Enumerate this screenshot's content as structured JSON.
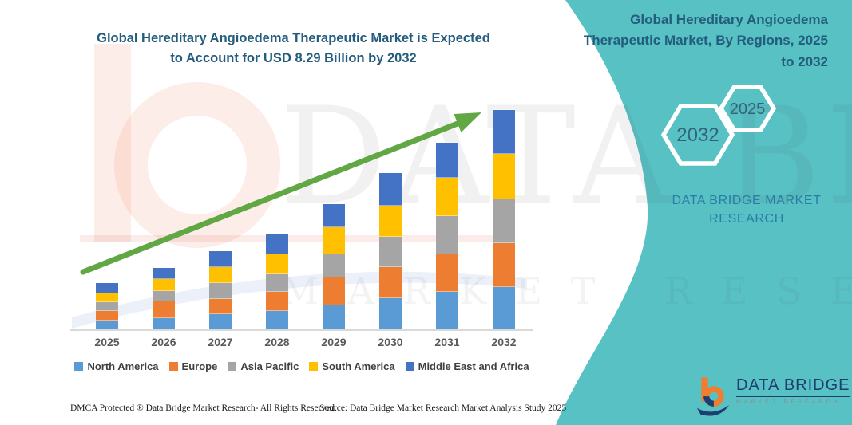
{
  "header": {
    "main_title_line1": "Global Hereditary Angioedema Therapeutic Market is Expected",
    "main_title_line2": "to Account for USD 8.29 Billion by 2032"
  },
  "side_panel": {
    "title": "Global Hereditary Angioedema Therapeutic Market, By Regions, 2025 to 2032",
    "hexagon_back_label": "2025",
    "hexagon_front_label": "2032",
    "brand_line1": "DATA BRIDGE MARKET",
    "brand_line2": "RESEARCH",
    "panel_color": "#57C1C4",
    "title_color": "#235C7C",
    "brand_color": "#2B7CA5"
  },
  "chart_data": {
    "type": "bar",
    "stacked": true,
    "title": "Global Hereditary Angioedema Therapeutic Market is Expected to Account for USD 8.29 Billion by 2032",
    "unit": "USD Billion",
    "categories": [
      "2025",
      "2026",
      "2027",
      "2028",
      "2029",
      "2030",
      "2031",
      "2032"
    ],
    "series": [
      {
        "name": "North America",
        "color": "#5B9BD5",
        "values": [
          0.33,
          0.42,
          0.57,
          0.69,
          0.9,
          1.17,
          1.41,
          1.59
        ]
      },
      {
        "name": "Europe",
        "color": "#ED7D31",
        "values": [
          0.36,
          0.63,
          0.57,
          0.72,
          1.05,
          1.17,
          1.44,
          1.68
        ]
      },
      {
        "name": "Asia Pacific",
        "color": "#A5A5A5",
        "values": [
          0.33,
          0.39,
          0.6,
          0.66,
          0.9,
          1.17,
          1.44,
          1.65
        ]
      },
      {
        "name": "South America",
        "color": "#FFC000",
        "values": [
          0.33,
          0.45,
          0.6,
          0.78,
          1.02,
          1.17,
          1.44,
          1.71
        ]
      },
      {
        "name": "Middle East and Africa",
        "color": "#4472C4",
        "values": [
          0.42,
          0.45,
          0.63,
          0.75,
          0.87,
          1.23,
          1.35,
          1.66
        ]
      }
    ],
    "totals": [
      1.77,
      2.34,
      2.97,
      3.6,
      4.74,
      5.91,
      7.08,
      8.29
    ],
    "ylim": [
      0,
      8.6
    ],
    "grid": false,
    "legend_position": "bottom",
    "trend_arrow": true,
    "trend_arrow_color": "#61A744",
    "axis_line_color": "#D9D9D9"
  },
  "watermark": {
    "big_text": "DATA BRIDGE",
    "sub_text": "MARKET RESEARCH"
  },
  "footer": {
    "left": "DMCA Protected ® Data Bridge Market Research-  All Rights Reserved.",
    "source": "Source: Data Bridge Market Research  Market Analysis Study 2025"
  },
  "logo": {
    "name": "DATA BRIDGE",
    "tagline": "MARKET RESEARCH"
  }
}
